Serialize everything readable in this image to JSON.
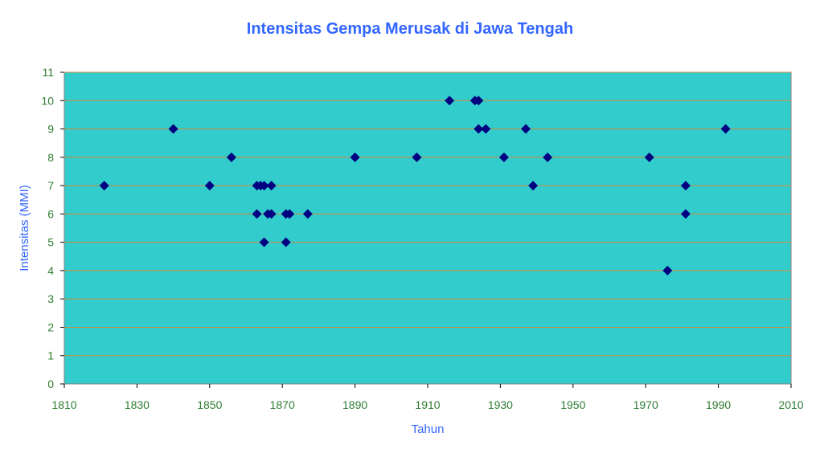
{
  "chart_data": {
    "type": "scatter",
    "title": "Intensitas Gempa Merusak di Jawa Tengah",
    "xlabel": "Tahun",
    "ylabel": "Intensitas (MMI)",
    "xlim": [
      1810,
      2010
    ],
    "ylim": [
      0,
      11
    ],
    "x_ticks": [
      1810,
      1830,
      1850,
      1870,
      1890,
      1910,
      1930,
      1950,
      1970,
      1990,
      2010
    ],
    "y_ticks": [
      0,
      1,
      2,
      3,
      4,
      5,
      6,
      7,
      8,
      9,
      10,
      11
    ],
    "grid": "horizontal",
    "marker": "diamond",
    "colors": {
      "plot_background": "#33cccc",
      "gridline": "#d08a3a",
      "marker": "#000080",
      "text": "#3366ff",
      "tick_text": "#2e7d32"
    },
    "points": [
      {
        "x": 1821,
        "y": 7
      },
      {
        "x": 1840,
        "y": 9
      },
      {
        "x": 1850,
        "y": 7
      },
      {
        "x": 1856,
        "y": 8
      },
      {
        "x": 1863,
        "y": 7
      },
      {
        "x": 1864,
        "y": 7
      },
      {
        "x": 1865,
        "y": 7
      },
      {
        "x": 1867,
        "y": 7
      },
      {
        "x": 1863,
        "y": 6
      },
      {
        "x": 1866,
        "y": 6
      },
      {
        "x": 1867,
        "y": 6
      },
      {
        "x": 1871,
        "y": 6
      },
      {
        "x": 1872,
        "y": 6
      },
      {
        "x": 1877,
        "y": 6
      },
      {
        "x": 1865,
        "y": 5
      },
      {
        "x": 1871,
        "y": 5
      },
      {
        "x": 1890,
        "y": 8
      },
      {
        "x": 1907,
        "y": 8
      },
      {
        "x": 1916,
        "y": 10
      },
      {
        "x": 1923,
        "y": 10
      },
      {
        "x": 1924,
        "y": 10
      },
      {
        "x": 1924,
        "y": 9
      },
      {
        "x": 1926,
        "y": 9
      },
      {
        "x": 1931,
        "y": 8
      },
      {
        "x": 1937,
        "y": 9
      },
      {
        "x": 1939,
        "y": 7
      },
      {
        "x": 1943,
        "y": 8
      },
      {
        "x": 1971,
        "y": 8
      },
      {
        "x": 1976,
        "y": 4
      },
      {
        "x": 1981,
        "y": 7
      },
      {
        "x": 1981,
        "y": 6
      },
      {
        "x": 1992,
        "y": 9
      }
    ]
  }
}
